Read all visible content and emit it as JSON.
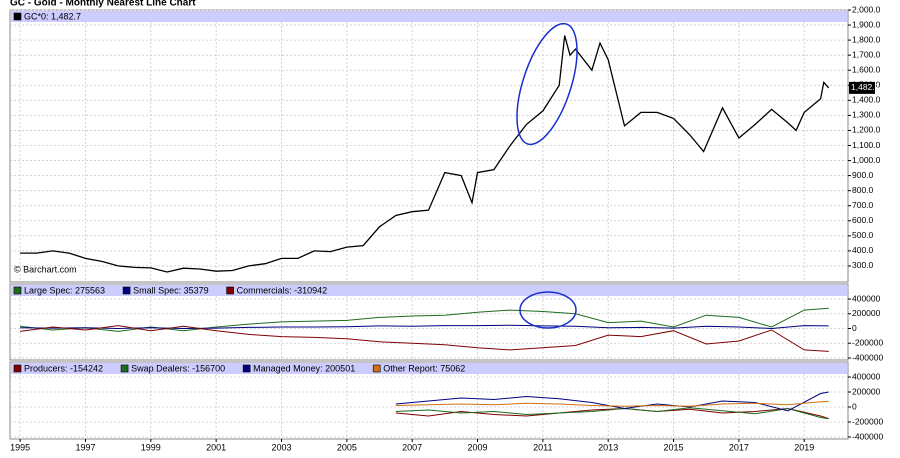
{
  "chart_data": [
    {
      "type": "line",
      "title": "GC - Gold - Monthly Nearest Line Chart",
      "source": "© Barchart.com",
      "last_value_label": "1,482.7",
      "x": [
        1995.0,
        1995.5,
        1996.0,
        1996.5,
        1997.0,
        1997.5,
        1998.0,
        1998.5,
        1999.0,
        1999.5,
        2000.0,
        2000.5,
        2001.0,
        2001.5,
        2002.0,
        2002.5,
        2003.0,
        2003.5,
        2004.0,
        2004.5,
        2005.0,
        2005.5,
        2006.0,
        2006.5,
        2007.0,
        2007.5,
        2008.0,
        2008.5,
        2008.83,
        2009.0,
        2009.5,
        2010.0,
        2010.5,
        2011.0,
        2011.5,
        2011.67,
        2011.83,
        2012.0,
        2012.5,
        2012.75,
        2013.0,
        2013.5,
        2014.0,
        2014.5,
        2015.0,
        2015.5,
        2015.92,
        2016.5,
        2017.0,
        2017.5,
        2018.0,
        2018.5,
        2018.75,
        2019.0,
        2019.5,
        2019.6,
        2019.75
      ],
      "series": [
        {
          "name": "GC*0: 1,482.7",
          "color": "#000000",
          "values": [
            385,
            385,
            400,
            385,
            350,
            330,
            300,
            290,
            287,
            260,
            285,
            280,
            265,
            270,
            300,
            315,
            350,
            350,
            400,
            395,
            425,
            435,
            560,
            635,
            660,
            670,
            920,
            900,
            720,
            920,
            940,
            1100,
            1240,
            1330,
            1500,
            1830,
            1700,
            1740,
            1600,
            1780,
            1670,
            1230,
            1320,
            1320,
            1280,
            1170,
            1060,
            1350,
            1150,
            1240,
            1340,
            1250,
            1200,
            1320,
            1410,
            1520,
            1482.7
          ]
        }
      ],
      "ylim": [
        200,
        2000
      ],
      "yticks": [
        {
          "value": 300,
          "label": "300.0"
        },
        {
          "value": 400,
          "label": "400.0"
        },
        {
          "value": 500,
          "label": "500.0"
        },
        {
          "value": 600,
          "label": "600.0"
        },
        {
          "value": 700,
          "label": "700.0"
        },
        {
          "value": 800,
          "label": "800.0"
        },
        {
          "value": 900,
          "label": "900.0"
        },
        {
          "value": 1000,
          "label": "1,000.0"
        },
        {
          "value": 1100,
          "label": "1,100.0"
        },
        {
          "value": 1200,
          "label": "1,200.0"
        },
        {
          "value": 1300,
          "label": "1,300.0"
        },
        {
          "value": 1400,
          "label": "1,400.0"
        },
        {
          "value": 1500,
          "label": "1,500.0"
        },
        {
          "value": 1600,
          "label": "1,600.0"
        },
        {
          "value": 1700,
          "label": "1,700.0"
        },
        {
          "value": 1800,
          "label": "1,800.0"
        },
        {
          "value": 1900,
          "label": "1,900.0"
        },
        {
          "value": 2000,
          "label": "2,000.0"
        }
      ]
    },
    {
      "type": "line",
      "x": [
        1995,
        1996,
        1997,
        1998,
        1999,
        2000,
        2001,
        2002,
        2003,
        2004,
        2005,
        2006,
        2007,
        2008,
        2009,
        2010,
        2011,
        2012,
        2013,
        2014,
        2015,
        2016,
        2017,
        2018,
        2019,
        2019.75
      ],
      "series": [
        {
          "name": "Large Spec: 275563",
          "color": "#1e6b1e",
          "values": [
            30000,
            -20000,
            10000,
            -40000,
            20000,
            -30000,
            20000,
            60000,
            90000,
            100000,
            110000,
            150000,
            170000,
            180000,
            220000,
            250000,
            230000,
            200000,
            80000,
            100000,
            20000,
            180000,
            150000,
            20000,
            250000,
            275563
          ]
        },
        {
          "name": "Small Spec: 35379",
          "color": "#000080",
          "values": [
            10000,
            5000,
            10000,
            0,
            10000,
            0,
            5000,
            15000,
            20000,
            20000,
            25000,
            35000,
            30000,
            40000,
            40000,
            45000,
            35000,
            30000,
            10000,
            15000,
            5000,
            30000,
            20000,
            0,
            40000,
            35379
          ]
        },
        {
          "name": "Commercials: -310942",
          "color": "#800000",
          "values": [
            -40000,
            20000,
            -20000,
            40000,
            -30000,
            30000,
            -30000,
            -80000,
            -110000,
            -120000,
            -140000,
            -180000,
            -200000,
            -220000,
            -260000,
            -290000,
            -260000,
            -230000,
            -90000,
            -110000,
            -30000,
            -210000,
            -170000,
            -20000,
            -290000,
            -310942
          ]
        }
      ],
      "ylim": [
        -400000,
        400000
      ],
      "yticks": [
        400000,
        200000,
        0,
        -200000,
        -400000
      ]
    },
    {
      "type": "line",
      "x": [
        2006.5,
        2007.5,
        2008.5,
        2009.5,
        2010.5,
        2011.5,
        2012.5,
        2013.5,
        2014.5,
        2015.5,
        2016.5,
        2017.5,
        2018.5,
        2019.5,
        2019.75
      ],
      "series": [
        {
          "name": "Producers: -154242",
          "color": "#800000",
          "values": [
            -80000,
            -120000,
            -60000,
            -100000,
            -120000,
            -80000,
            -40000,
            -20000,
            -60000,
            -30000,
            -80000,
            -60000,
            -20000,
            -120000,
            -154242
          ]
        },
        {
          "name": "Swap Dealers: -156700",
          "color": "#1e6b1e",
          "values": [
            -60000,
            -40000,
            -80000,
            -60000,
            -100000,
            -80000,
            -60000,
            -20000,
            -60000,
            -10000,
            -50000,
            -90000,
            -20000,
            -140000,
            -156700
          ]
        },
        {
          "name": "Managed Money: 200501",
          "color": "#000080",
          "values": [
            40000,
            80000,
            120000,
            100000,
            140000,
            110000,
            60000,
            -20000,
            40000,
            0,
            80000,
            60000,
            -50000,
            180000,
            200501
          ]
        },
        {
          "name": "Other Report: 75062",
          "color": "#d07010",
          "values": [
            20000,
            30000,
            40000,
            30000,
            50000,
            40000,
            20000,
            10000,
            20000,
            10000,
            40000,
            50000,
            30000,
            70000,
            75062
          ]
        }
      ],
      "ylim": [
        -400000,
        400000
      ],
      "yticks": [
        400000,
        200000,
        0,
        -200000,
        -400000
      ],
      "xlim": [
        1994.69,
        2020.34
      ],
      "xticks": [
        1995,
        1997,
        1999,
        2001,
        2003,
        2005,
        2007,
        2009,
        2011,
        2013,
        2015,
        2017,
        2019
      ]
    }
  ]
}
